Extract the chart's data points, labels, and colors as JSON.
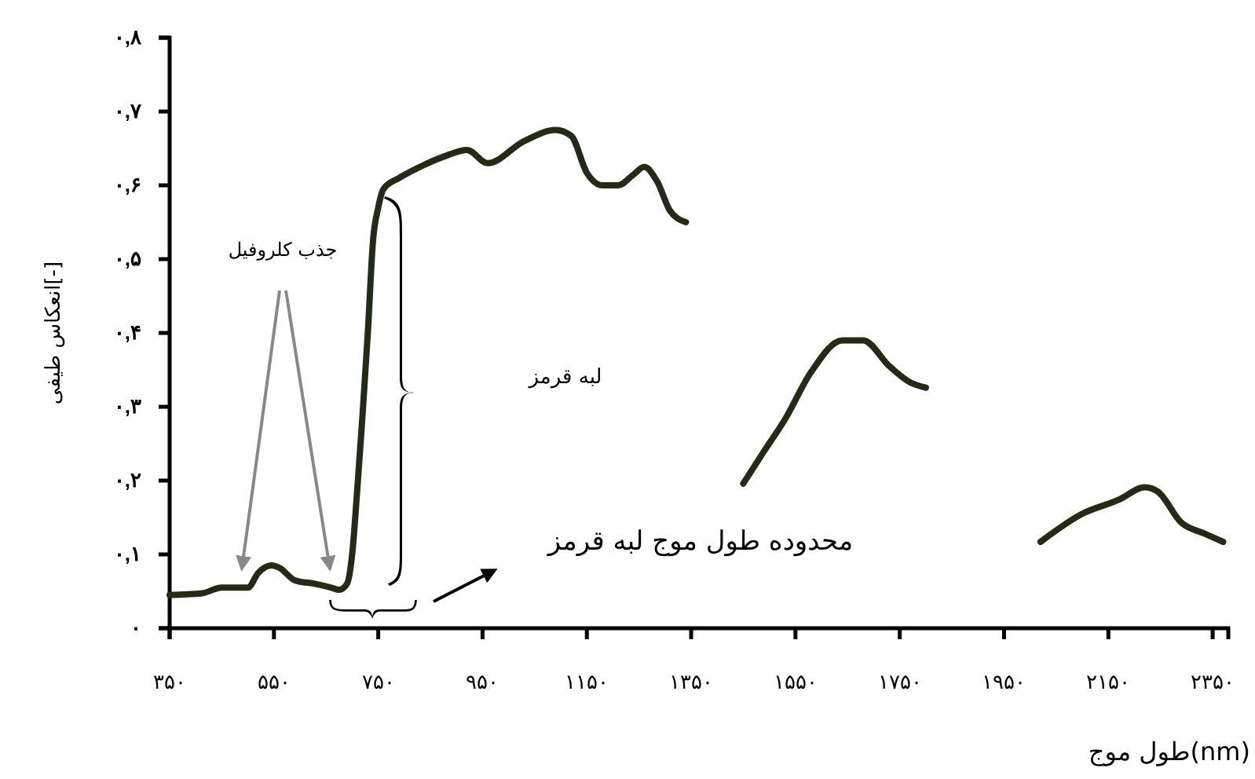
{
  "chart_data": {
    "type": "line",
    "xlabel": "طول موج(nm)",
    "ylabel": "انعکاس طیفی[-]",
    "annotations": [
      "جذب کلروفیل",
      "لبه قرمز",
      "محدوده طول موج لبه قرمز"
    ],
    "xlim": [
      350,
      2380
    ],
    "ylim": [
      0,
      0.8
    ],
    "xticks": [
      {
        "value": 350,
        "label": "۳۵۰"
      },
      {
        "value": 550,
        "label": "۵۵۰"
      },
      {
        "value": 750,
        "label": "۷۵۰"
      },
      {
        "value": 950,
        "label": "۹۵۰"
      },
      {
        "value": 1150,
        "label": "۱۱۵۰"
      },
      {
        "value": 1350,
        "label": "۱۳۵۰"
      },
      {
        "value": 1550,
        "label": "۱۵۵۰"
      },
      {
        "value": 1750,
        "label": "۱۷۵۰"
      },
      {
        "value": 1950,
        "label": "۱۹۵۰"
      },
      {
        "value": 2150,
        "label": "۲۱۵۰"
      },
      {
        "value": 2350,
        "label": "۲۳۵۰"
      }
    ],
    "yticks": [
      {
        "value": 0,
        "label": "۰"
      },
      {
        "value": 0.1,
        "label": "۰,۱"
      },
      {
        "value": 0.2,
        "label": "۰,۲"
      },
      {
        "value": 0.3,
        "label": "۰,۳"
      },
      {
        "value": 0.4,
        "label": "۰,۴"
      },
      {
        "value": 0.5,
        "label": "۰,۵"
      },
      {
        "value": 0.6,
        "label": "۰,۶"
      },
      {
        "value": 0.7,
        "label": "۰,۷"
      },
      {
        "value": 0.8,
        "label": "۰,۸"
      }
    ],
    "marker": "none",
    "line_style": "solid",
    "series": [
      {
        "color": "#232b16",
        "x": [
          350,
          410,
          450,
          500,
          520,
          545,
          560,
          590,
          630,
          660,
          675,
          690,
          700,
          710,
          720,
          730,
          740,
          750,
          760,
          790,
          830,
          880,
          920,
          960,
          1030,
          1090,
          1120,
          1150,
          1180,
          1210,
          1240,
          1260,
          1285,
          1310,
          1340
        ],
        "values": [
          0.045,
          0.047,
          0.055,
          0.055,
          0.075,
          0.085,
          0.082,
          0.065,
          0.06,
          0.055,
          0.052,
          0.06,
          0.1,
          0.19,
          0.29,
          0.4,
          0.525,
          0.57,
          0.595,
          0.61,
          0.625,
          0.64,
          0.648,
          0.63,
          0.66,
          0.675,
          0.667,
          0.617,
          0.6,
          0.6,
          0.615,
          0.625,
          0.605,
          0.565,
          0.55
        ]
      },
      {
        "color": "#232b16",
        "x": [
          1450,
          1490,
          1530,
          1580,
          1640,
          1680,
          1730,
          1770,
          1800
        ],
        "values": [
          0.196,
          0.24,
          0.283,
          0.347,
          0.39,
          0.39,
          0.355,
          0.333,
          0.326
        ]
      },
      {
        "color": "#232b16",
        "x": [
          2020,
          2100,
          2170,
          2220,
          2245,
          2290,
          2335,
          2370
        ],
        "values": [
          0.117,
          0.155,
          0.174,
          0.191,
          0.185,
          0.143,
          0.128,
          0.117
        ]
      }
    ]
  }
}
